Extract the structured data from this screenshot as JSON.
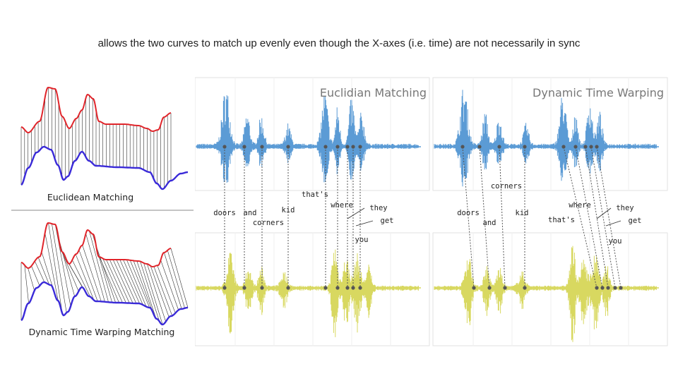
{
  "caption": "allows the two curves to match up evenly even though the X-axes (i.e. time) are not necessarily in sync",
  "left_figure": {
    "top_label": "Euclidean Matching",
    "bottom_label": "Dynamic Time Warping Matching",
    "colors": {
      "upper_curve": "#e0242a",
      "lower_curve": "#3a2ad8",
      "links": "#333333"
    }
  },
  "right_figure": {
    "colors": {
      "upper_wave": "#5b9bd5",
      "lower_wave": "#d8d860",
      "markers": "#555555"
    },
    "panels": [
      {
        "title": "Euclidian Matching",
        "words": [
          {
            "id": "doors",
            "text": "doors"
          },
          {
            "id": "and",
            "text": "and"
          },
          {
            "id": "corners",
            "text": "corners"
          },
          {
            "id": "kid",
            "text": "kid"
          },
          {
            "id": "thats",
            "text": "that's"
          },
          {
            "id": "where",
            "text": "where"
          },
          {
            "id": "they",
            "text": "they"
          },
          {
            "id": "get",
            "text": "get"
          },
          {
            "id": "you",
            "text": "you"
          }
        ]
      },
      {
        "title": "Dynamic Time Warping",
        "words": [
          {
            "id": "doors",
            "text": "doors"
          },
          {
            "id": "corners",
            "text": "corners"
          },
          {
            "id": "and",
            "text": "and"
          },
          {
            "id": "kid",
            "text": "kid"
          },
          {
            "id": "where",
            "text": "where"
          },
          {
            "id": "thats",
            "text": "that's"
          },
          {
            "id": "they",
            "text": "they"
          },
          {
            "id": "get",
            "text": "get"
          },
          {
            "id": "you",
            "text": "you"
          }
        ]
      }
    ]
  }
}
